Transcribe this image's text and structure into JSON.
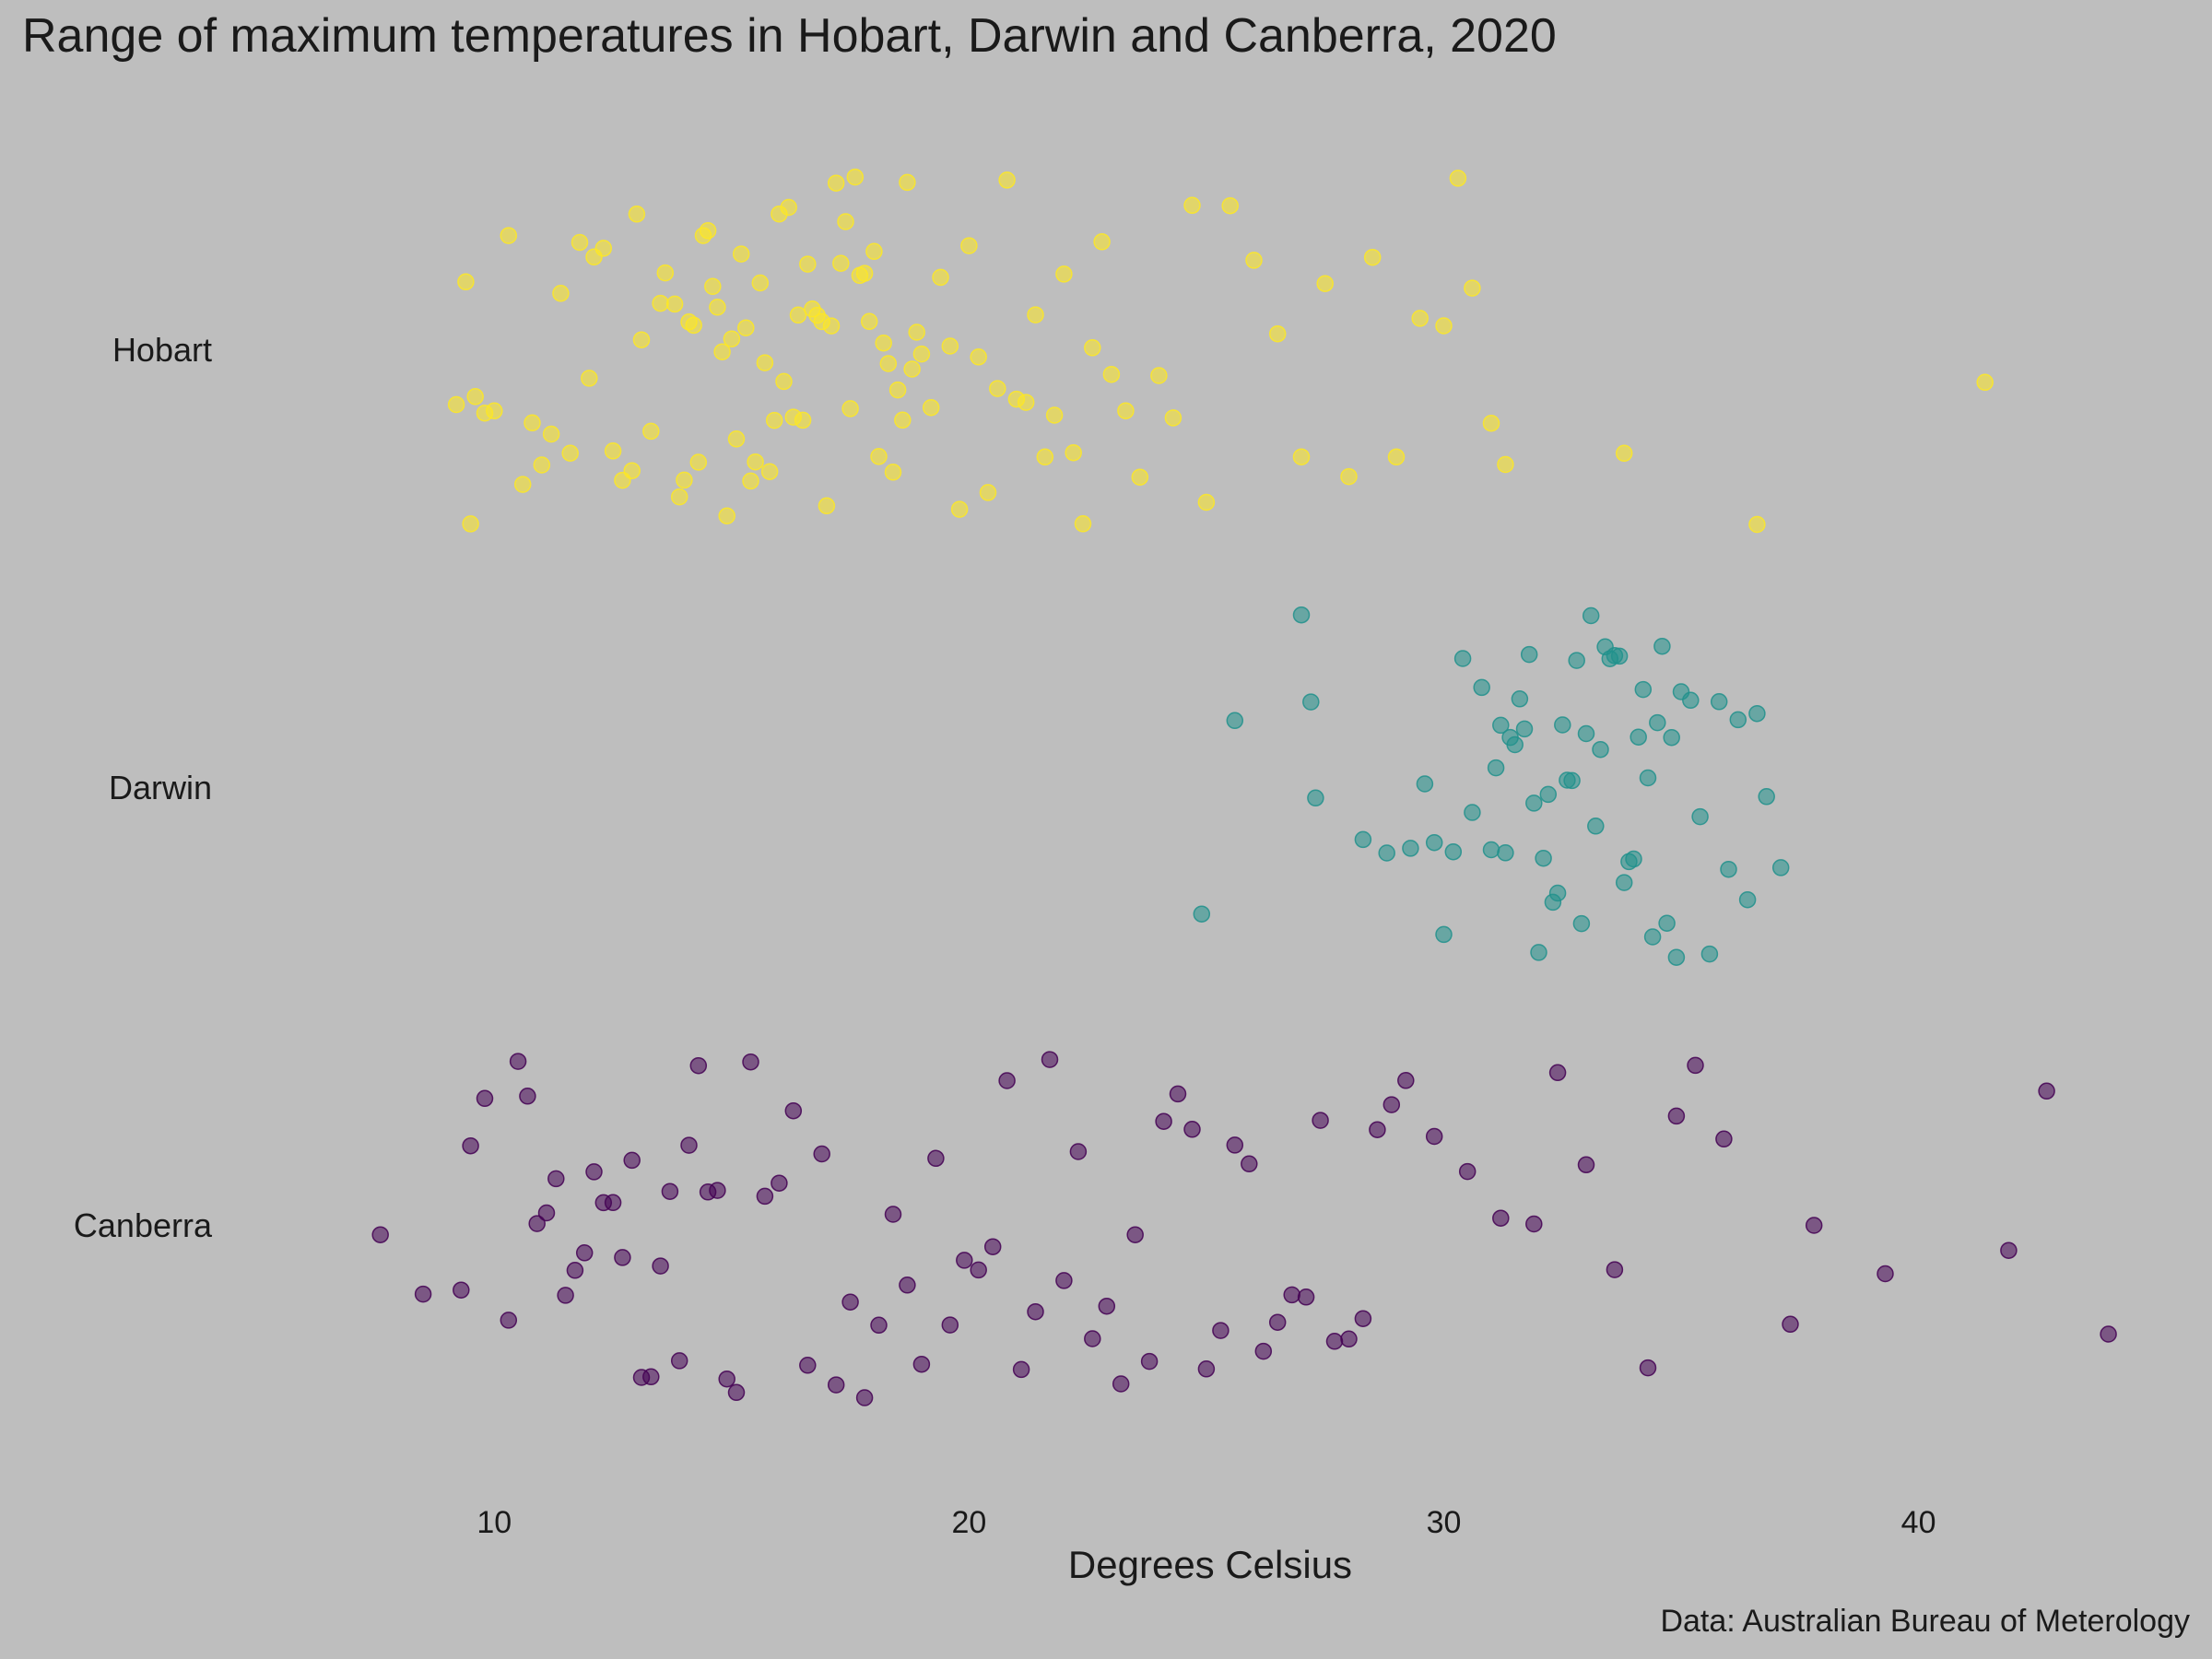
{
  "chart_data": {
    "type": "scatter",
    "subtype": "jitter-strip",
    "title": "Range of maximum temperatures in Hobart, Darwin and Canberra, 2020",
    "xlabel": "Degrees Celsius",
    "ylabel": "",
    "caption": "Data: Australian Bureau of Meterology",
    "xlim": [
      5.8,
      45.6
    ],
    "xticks": [
      10,
      20,
      30,
      40
    ],
    "grid": false,
    "legend": "none",
    "background": "#bebebe",
    "point_opacity": 0.55,
    "categories": [
      "Hobart",
      "Darwin",
      "Canberra"
    ],
    "series": [
      {
        "name": "Hobart",
        "color": "#fde725",
        "values": [
          9.2,
          9.4,
          9.6,
          9.5,
          9.8,
          10.0,
          10.3,
          10.6,
          10.8,
          11.0,
          11.2,
          11.4,
          11.6,
          11.8,
          12.0,
          12.1,
          12.3,
          12.5,
          12.7,
          12.9,
          13.0,
          13.1,
          13.3,
          13.5,
          13.6,
          13.8,
          13.9,
          14.0,
          14.1,
          14.2,
          14.3,
          14.4,
          14.5,
          14.6,
          14.7,
          14.8,
          14.9,
          15.0,
          15.1,
          15.2,
          15.3,
          15.4,
          15.5,
          15.6,
          15.7,
          15.8,
          15.9,
          16.0,
          16.1,
          16.2,
          16.3,
          16.4,
          16.5,
          16.6,
          16.7,
          16.8,
          16.9,
          17.0,
          17.1,
          17.2,
          17.3,
          17.4,
          17.5,
          17.6,
          17.7,
          17.8,
          17.9,
          18.0,
          18.1,
          18.2,
          18.3,
          18.4,
          18.5,
          18.6,
          18.7,
          18.8,
          18.9,
          19.0,
          19.2,
          19.4,
          19.6,
          19.8,
          20.0,
          20.2,
          20.4,
          20.6,
          20.8,
          21.0,
          21.2,
          21.4,
          21.6,
          21.8,
          22.0,
          22.2,
          22.4,
          22.6,
          22.8,
          23.0,
          23.3,
          23.6,
          24.0,
          24.3,
          24.7,
          25.0,
          25.5,
          26.0,
          26.5,
          27.0,
          27.5,
          28.0,
          28.5,
          29.0,
          29.5,
          30.0,
          30.3,
          30.6,
          31.0,
          31.3,
          33.8,
          36.6,
          41.4
        ]
      },
      {
        "name": "Darwin",
        "color": "#21918c",
        "values": [
          24.9,
          25.6,
          27.0,
          27.2,
          27.3,
          28.3,
          28.8,
          29.3,
          29.6,
          29.8,
          30.0,
          30.2,
          30.4,
          30.6,
          30.8,
          31.0,
          31.1,
          31.2,
          31.3,
          31.4,
          31.5,
          31.6,
          31.7,
          31.8,
          31.9,
          32.0,
          32.1,
          32.2,
          32.3,
          32.4,
          32.5,
          32.6,
          32.7,
          32.8,
          32.9,
          33.0,
          33.1,
          33.2,
          33.3,
          33.4,
          33.5,
          33.6,
          33.7,
          33.8,
          33.9,
          34.0,
          34.1,
          34.2,
          34.3,
          34.4,
          34.5,
          34.6,
          34.7,
          34.8,
          34.9,
          35.0,
          35.2,
          35.4,
          35.6,
          35.8,
          36.0,
          36.2,
          36.4,
          36.6,
          36.8,
          37.1
        ]
      },
      {
        "name": "Canberra",
        "color": "#440154",
        "values": [
          7.6,
          8.5,
          9.3,
          9.5,
          9.8,
          10.3,
          10.5,
          10.7,
          10.9,
          11.1,
          11.3,
          11.5,
          11.7,
          11.9,
          12.1,
          12.3,
          12.5,
          12.7,
          12.9,
          13.1,
          13.3,
          13.5,
          13.7,
          13.9,
          14.1,
          14.3,
          14.5,
          14.7,
          14.9,
          15.1,
          15.4,
          15.7,
          16.0,
          16.3,
          16.6,
          16.9,
          17.2,
          17.5,
          17.8,
          18.1,
          18.4,
          18.7,
          19.0,
          19.3,
          19.6,
          19.9,
          20.2,
          20.5,
          20.8,
          21.1,
          21.4,
          21.7,
          22.0,
          22.3,
          22.6,
          22.9,
          23.2,
          23.5,
          23.8,
          24.1,
          24.4,
          24.7,
          25.0,
          25.3,
          25.6,
          25.9,
          26.2,
          26.5,
          26.8,
          27.1,
          27.4,
          27.7,
          28.0,
          28.3,
          28.6,
          28.9,
          29.2,
          29.8,
          30.5,
          31.2,
          31.9,
          32.4,
          33.0,
          33.6,
          34.3,
          34.9,
          35.3,
          35.9,
          37.3,
          37.8,
          39.3,
          41.9,
          42.7,
          44.0
        ]
      }
    ]
  }
}
